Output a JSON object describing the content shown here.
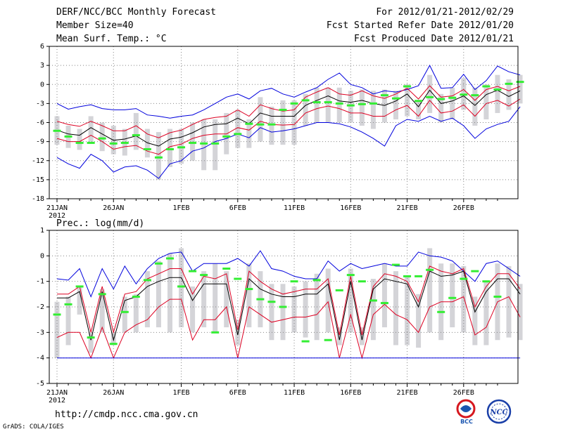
{
  "header": {
    "title": "DERF/NCC/BCC Monthly Forecast",
    "member_size": "Member Size=40",
    "period": "For 2012/01/21-2012/02/29",
    "fcst_started": "Fcst Started Refer Date 2012/01/20",
    "fcst_produced": "Fcst Produced Date 2012/01/21"
  },
  "footer": {
    "url": "http://cmdp.ncc.cma.gov.cn",
    "credit": "GrADS: COLA/IGES",
    "logo_bcc": "BCC",
    "logo_ncc": "NCC"
  },
  "colors": {
    "blue": "#0000dd",
    "red": "#dd0022",
    "mean": "#000000",
    "green": "#33ee33",
    "box": "#d4d4d8",
    "grid": "#888888"
  },
  "chart_data": [
    {
      "type": "line",
      "name": "temperature",
      "ylabel": "Mean Surf. Temp.: °C",
      "ylim": [
        -18,
        6
      ],
      "yticks": [
        6,
        3,
        0,
        -3,
        -6,
        -9,
        -12,
        -15,
        -18
      ],
      "x_tick_labels": [
        "21JAN",
        "26JAN",
        "1FEB",
        "6FEB",
        "11FEB",
        "16FEB",
        "21FEB",
        "26FEB"
      ],
      "x_tick_days": [
        1,
        6,
        12,
        17,
        22,
        27,
        32,
        37
      ],
      "x_year_label": "2012",
      "days": 40,
      "series": [
        {
          "name": "max",
          "color": "blue",
          "values": [
            -3.0,
            -3.9,
            -3.5,
            -3.2,
            -3.8,
            -4.0,
            -4.0,
            -3.8,
            -4.8,
            -5.0,
            -5.3,
            -5.0,
            -4.8,
            -4.0,
            -3.0,
            -2.0,
            -1.5,
            -2.3,
            -1.0,
            -0.6,
            -1.5,
            -2.0,
            -1.2,
            -0.5,
            0.8,
            1.8,
            0.0,
            -0.5,
            -1.5,
            -1.0,
            -1.2,
            -0.8,
            -0.2,
            3.0,
            -0.6,
            -0.5,
            1.6,
            -0.8,
            0.6,
            2.9,
            2.0,
            1.5
          ]
        },
        {
          "name": "upper",
          "color": "red",
          "values": [
            -5.8,
            -6.3,
            -6.6,
            -5.8,
            -6.5,
            -7.3,
            -7.3,
            -6.5,
            -7.8,
            -8.4,
            -7.6,
            -7.2,
            -6.3,
            -5.5,
            -5.2,
            -5.0,
            -4.0,
            -5.0,
            -3.2,
            -3.8,
            -4.2,
            -4.0,
            -2.0,
            -1.2,
            -0.5,
            -1.5,
            -1.7,
            -1.0,
            -1.8,
            -2.2,
            -1.5,
            -0.6,
            -2.3,
            -0.2,
            -2.0,
            -1.8,
            -0.8,
            -2.5,
            -0.8,
            -0.3,
            -1.0,
            -0.3
          ]
        },
        {
          "name": "mean",
          "color": "mean",
          "values": [
            -7.2,
            -7.8,
            -8.0,
            -6.8,
            -7.8,
            -8.8,
            -8.6,
            -8.1,
            -9.2,
            -9.7,
            -8.6,
            -8.3,
            -7.6,
            -6.7,
            -6.3,
            -6.2,
            -5.3,
            -6.2,
            -4.5,
            -5.0,
            -5.0,
            -5.0,
            -3.3,
            -2.5,
            -1.8,
            -2.6,
            -2.8,
            -2.5,
            -3.0,
            -3.3,
            -2.6,
            -1.5,
            -3.5,
            -0.9,
            -3.0,
            -2.6,
            -1.8,
            -3.3,
            -1.6,
            -0.9,
            -1.9,
            -1.0
          ]
        },
        {
          "name": "lower",
          "color": "red",
          "values": [
            -8.5,
            -9.0,
            -9.0,
            -8.0,
            -9.0,
            -10.2,
            -9.8,
            -9.6,
            -10.5,
            -11.0,
            -9.8,
            -9.4,
            -8.5,
            -8.0,
            -7.8,
            -7.8,
            -6.8,
            -7.2,
            -5.8,
            -6.3,
            -6.4,
            -6.3,
            -4.5,
            -3.8,
            -3.4,
            -3.8,
            -4.5,
            -4.5,
            -5.0,
            -5.0,
            -4.0,
            -3.3,
            -5.0,
            -2.5,
            -4.5,
            -4.2,
            -3.2,
            -5.0,
            -3.0,
            -2.5,
            -3.4,
            -2.3
          ]
        },
        {
          "name": "min",
          "color": "blue",
          "values": [
            -11.5,
            -12.5,
            -13.2,
            -11.0,
            -12.0,
            -13.8,
            -13.0,
            -12.8,
            -13.5,
            -14.8,
            -12.5,
            -12.0,
            -10.5,
            -10.0,
            -9.0,
            -8.5,
            -7.8,
            -8.4,
            -6.8,
            -7.5,
            -7.3,
            -7.0,
            -6.5,
            -6.0,
            -6.0,
            -6.2,
            -6.7,
            -7.5,
            -8.5,
            -9.7,
            -6.5,
            -5.5,
            -5.8,
            -5.0,
            -5.8,
            -5.3,
            -6.5,
            -8.5,
            -7.0,
            -6.3,
            -5.8,
            -3.5
          ]
        }
      ],
      "boxes": {
        "low": [
          -9.5,
          -10,
          -10.3,
          -9,
          -10.5,
          -11,
          -11.2,
          -10.3,
          -11.5,
          -15,
          -13,
          -12.5,
          -12,
          -13.5,
          -13.5,
          -11,
          -10,
          -10,
          -9,
          -9.5,
          -9.5,
          -9.5,
          -6.5,
          -6,
          -6,
          -6,
          -6,
          -6.5,
          -7,
          -6,
          -5.5,
          -5,
          -5.5,
          -4.5,
          -6,
          -5.5,
          -4,
          -6.5,
          -5.5,
          -4.5,
          -4,
          -3
        ],
        "high": [
          -5,
          -6.5,
          -7,
          -5,
          -6,
          -6.5,
          -7,
          -4.5,
          -7,
          -7.5,
          -7,
          -7,
          -6,
          -5.5,
          -5.5,
          -4.5,
          -4,
          -5.5,
          -2,
          -3.5,
          -2.5,
          -2.5,
          -1.5,
          -0.5,
          -0.5,
          -0.5,
          -1,
          -0.8,
          -1,
          -0.8,
          -1,
          0,
          -2.5,
          1.5,
          -1.5,
          -0.5,
          1,
          -0.5,
          0,
          1.5,
          0.8,
          1.5
        ]
      },
      "observed": [
        -7.3,
        -8.2,
        -9.2,
        -9.2,
        -8.5,
        -9.3,
        -9.2,
        -8.0,
        -10.2,
        -11.5,
        -10.2,
        -9.9,
        -9.2,
        -9.3,
        -9.3,
        -8.2,
        -7.8,
        -6.2,
        -6.3,
        -6.3,
        -4.0,
        -3.0,
        -2.5,
        -2.8,
        -2.8,
        -3.0,
        -3.3,
        -3.1,
        -3.0,
        -1.7,
        -2.2,
        -0.3,
        -2.6,
        -2.0,
        -2.3,
        -2.1,
        -1.6,
        -1.7,
        -0.3,
        -0.8,
        0.1,
        0.4
      ]
    },
    {
      "type": "line",
      "name": "precipitation",
      "ylabel": "Prec.: log(mm/d)",
      "ylim": [
        -5,
        1
      ],
      "yticks": [
        1,
        0,
        -1,
        -2,
        -3,
        -4,
        -5
      ],
      "x_tick_labels": [
        "21JAN",
        "26JAN",
        "1FEB",
        "6FEB",
        "11FEB",
        "16FEB",
        "21FEB",
        "26FEB"
      ],
      "x_tick_days": [
        1,
        6,
        12,
        17,
        22,
        27,
        32,
        37
      ],
      "x_year_label": "2012",
      "days": 40,
      "series": [
        {
          "name": "max",
          "color": "blue",
          "values": [
            -0.9,
            -0.95,
            -0.5,
            -1.6,
            -0.5,
            -1.3,
            -0.4,
            -1.1,
            -0.5,
            -0.1,
            0.1,
            0.15,
            -0.6,
            -0.3,
            -0.3,
            -0.3,
            -0.1,
            -0.4,
            0.2,
            -0.5,
            -0.6,
            -0.8,
            -0.9,
            -0.9,
            -0.2,
            -0.6,
            -0.3,
            -0.5,
            -0.4,
            -0.3,
            -0.4,
            -0.4,
            0.15,
            0.0,
            -0.05,
            -0.2,
            -0.6,
            -1.0,
            -0.3,
            -0.2,
            -0.5,
            -0.8
          ]
        },
        {
          "name": "upper",
          "color": "red",
          "values": [
            -1.5,
            -1.5,
            -1.2,
            -3.0,
            -1.2,
            -3.0,
            -1.5,
            -1.4,
            -0.9,
            -0.7,
            -0.5,
            -0.5,
            -1.5,
            -0.8,
            -0.9,
            -0.7,
            -2.9,
            -0.6,
            -1.0,
            -1.3,
            -1.5,
            -1.4,
            -1.3,
            -1.3,
            -0.9,
            -3.1,
            -0.8,
            -3.1,
            -1.2,
            -0.7,
            -0.8,
            -1.0,
            -1.8,
            -0.4,
            -0.6,
            -0.7,
            -0.5,
            -2.0,
            -1.2,
            -0.7,
            -0.7,
            -1.3
          ]
        },
        {
          "name": "mean",
          "color": "mean",
          "values": [
            -1.65,
            -1.65,
            -1.4,
            -3.3,
            -1.4,
            -3.3,
            -1.75,
            -1.6,
            -1.2,
            -1.0,
            -0.85,
            -0.85,
            -1.75,
            -1.1,
            -1.1,
            -1.1,
            -3.1,
            -0.9,
            -1.3,
            -1.5,
            -1.6,
            -1.6,
            -1.5,
            -1.5,
            -1.1,
            -3.3,
            -1.0,
            -3.3,
            -1.3,
            -0.9,
            -1.0,
            -1.1,
            -2.0,
            -0.6,
            -0.8,
            -0.75,
            -0.6,
            -2.2,
            -1.4,
            -0.9,
            -0.9,
            -1.5
          ]
        },
        {
          "name": "lower",
          "color": "red",
          "values": [
            -3.2,
            -3.0,
            -3.0,
            -4.0,
            -2.8,
            -4.0,
            -3.0,
            -2.7,
            -2.5,
            -2.0,
            -1.7,
            -1.7,
            -3.3,
            -2.5,
            -2.5,
            -2.0,
            -4.0,
            -2.0,
            -2.3,
            -2.6,
            -2.5,
            -2.4,
            -2.4,
            -2.3,
            -1.8,
            -4.0,
            -2.3,
            -4.0,
            -2.3,
            -1.9,
            -2.3,
            -2.5,
            -3.0,
            -2.0,
            -1.8,
            -1.8,
            -1.6,
            -3.1,
            -2.8,
            -1.8,
            -1.6,
            -2.4
          ]
        },
        {
          "name": "min",
          "color": "blue",
          "values": [
            -4,
            -4,
            -4,
            -4,
            -4,
            -4,
            -4,
            -4,
            -4,
            -4,
            -4,
            -4,
            -4,
            -4,
            -4,
            -4,
            -4,
            -4,
            -4,
            -4,
            -4,
            -4,
            -4,
            -4,
            -4,
            -4,
            -4,
            -4,
            -4,
            -4,
            -4,
            -4,
            -4,
            -4,
            -4,
            -4,
            -4,
            -4,
            -4,
            -4,
            -4,
            -4
          ]
        }
      ],
      "boxes": {
        "low": [
          -4,
          -3.5,
          -2.3,
          -3.8,
          -3.0,
          -3.5,
          -3.0,
          -3.0,
          -2.8,
          -2.8,
          -3.0,
          -2.8,
          -3.0,
          -2.8,
          -3.0,
          -2.8,
          -3.5,
          -2.8,
          -2.8,
          -3.3,
          -3.3,
          -3.0,
          -3.2,
          -3.3,
          -3.0,
          -3.5,
          -3.0,
          -3.5,
          -3.3,
          -2.8,
          -3.5,
          -3.5,
          -3.6,
          -3.0,
          -3.3,
          -2.8,
          -3.0,
          -3.5,
          -3.5,
          -3.3,
          -3.2,
          -3.3
        ],
        "high": [
          -1.8,
          -1.6,
          -1.2,
          -3.0,
          -1.3,
          -3.0,
          -1.6,
          -1.5,
          -0.6,
          -0.2,
          0.1,
          0.3,
          -1.2,
          -0.6,
          -0.3,
          -0.6,
          -2.5,
          -0.3,
          -0.6,
          -1.1,
          -1.1,
          -1.2,
          -1.0,
          -0.7,
          -0.5,
          -2.8,
          -0.5,
          -2.8,
          -0.9,
          -0.3,
          -0.6,
          -0.8,
          -1.5,
          0.3,
          -0.3,
          -0.3,
          -0.4,
          -1.6,
          -1.0,
          -0.3,
          -0.4,
          -1.1
        ]
      },
      "observed": [
        -2.3,
        -1.9,
        -1.2,
        -3.2,
        -1.5,
        -3.45,
        -2.2,
        -1.6,
        -0.95,
        -0.3,
        -0.1,
        -1.2,
        -0.6,
        -0.75,
        -3.0,
        -0.5,
        -0.9,
        -1.3,
        -1.7,
        -1.8,
        -2.0,
        -1.0,
        -3.35,
        -0.95,
        -3.3,
        -1.35,
        -0.75,
        -1.0,
        -1.75,
        -1.85,
        -0.35,
        -0.8,
        -0.8,
        -0.55,
        -2.2,
        -1.65,
        -0.9,
        -0.6,
        -1.0,
        -1.6,
        null,
        null
      ]
    }
  ]
}
